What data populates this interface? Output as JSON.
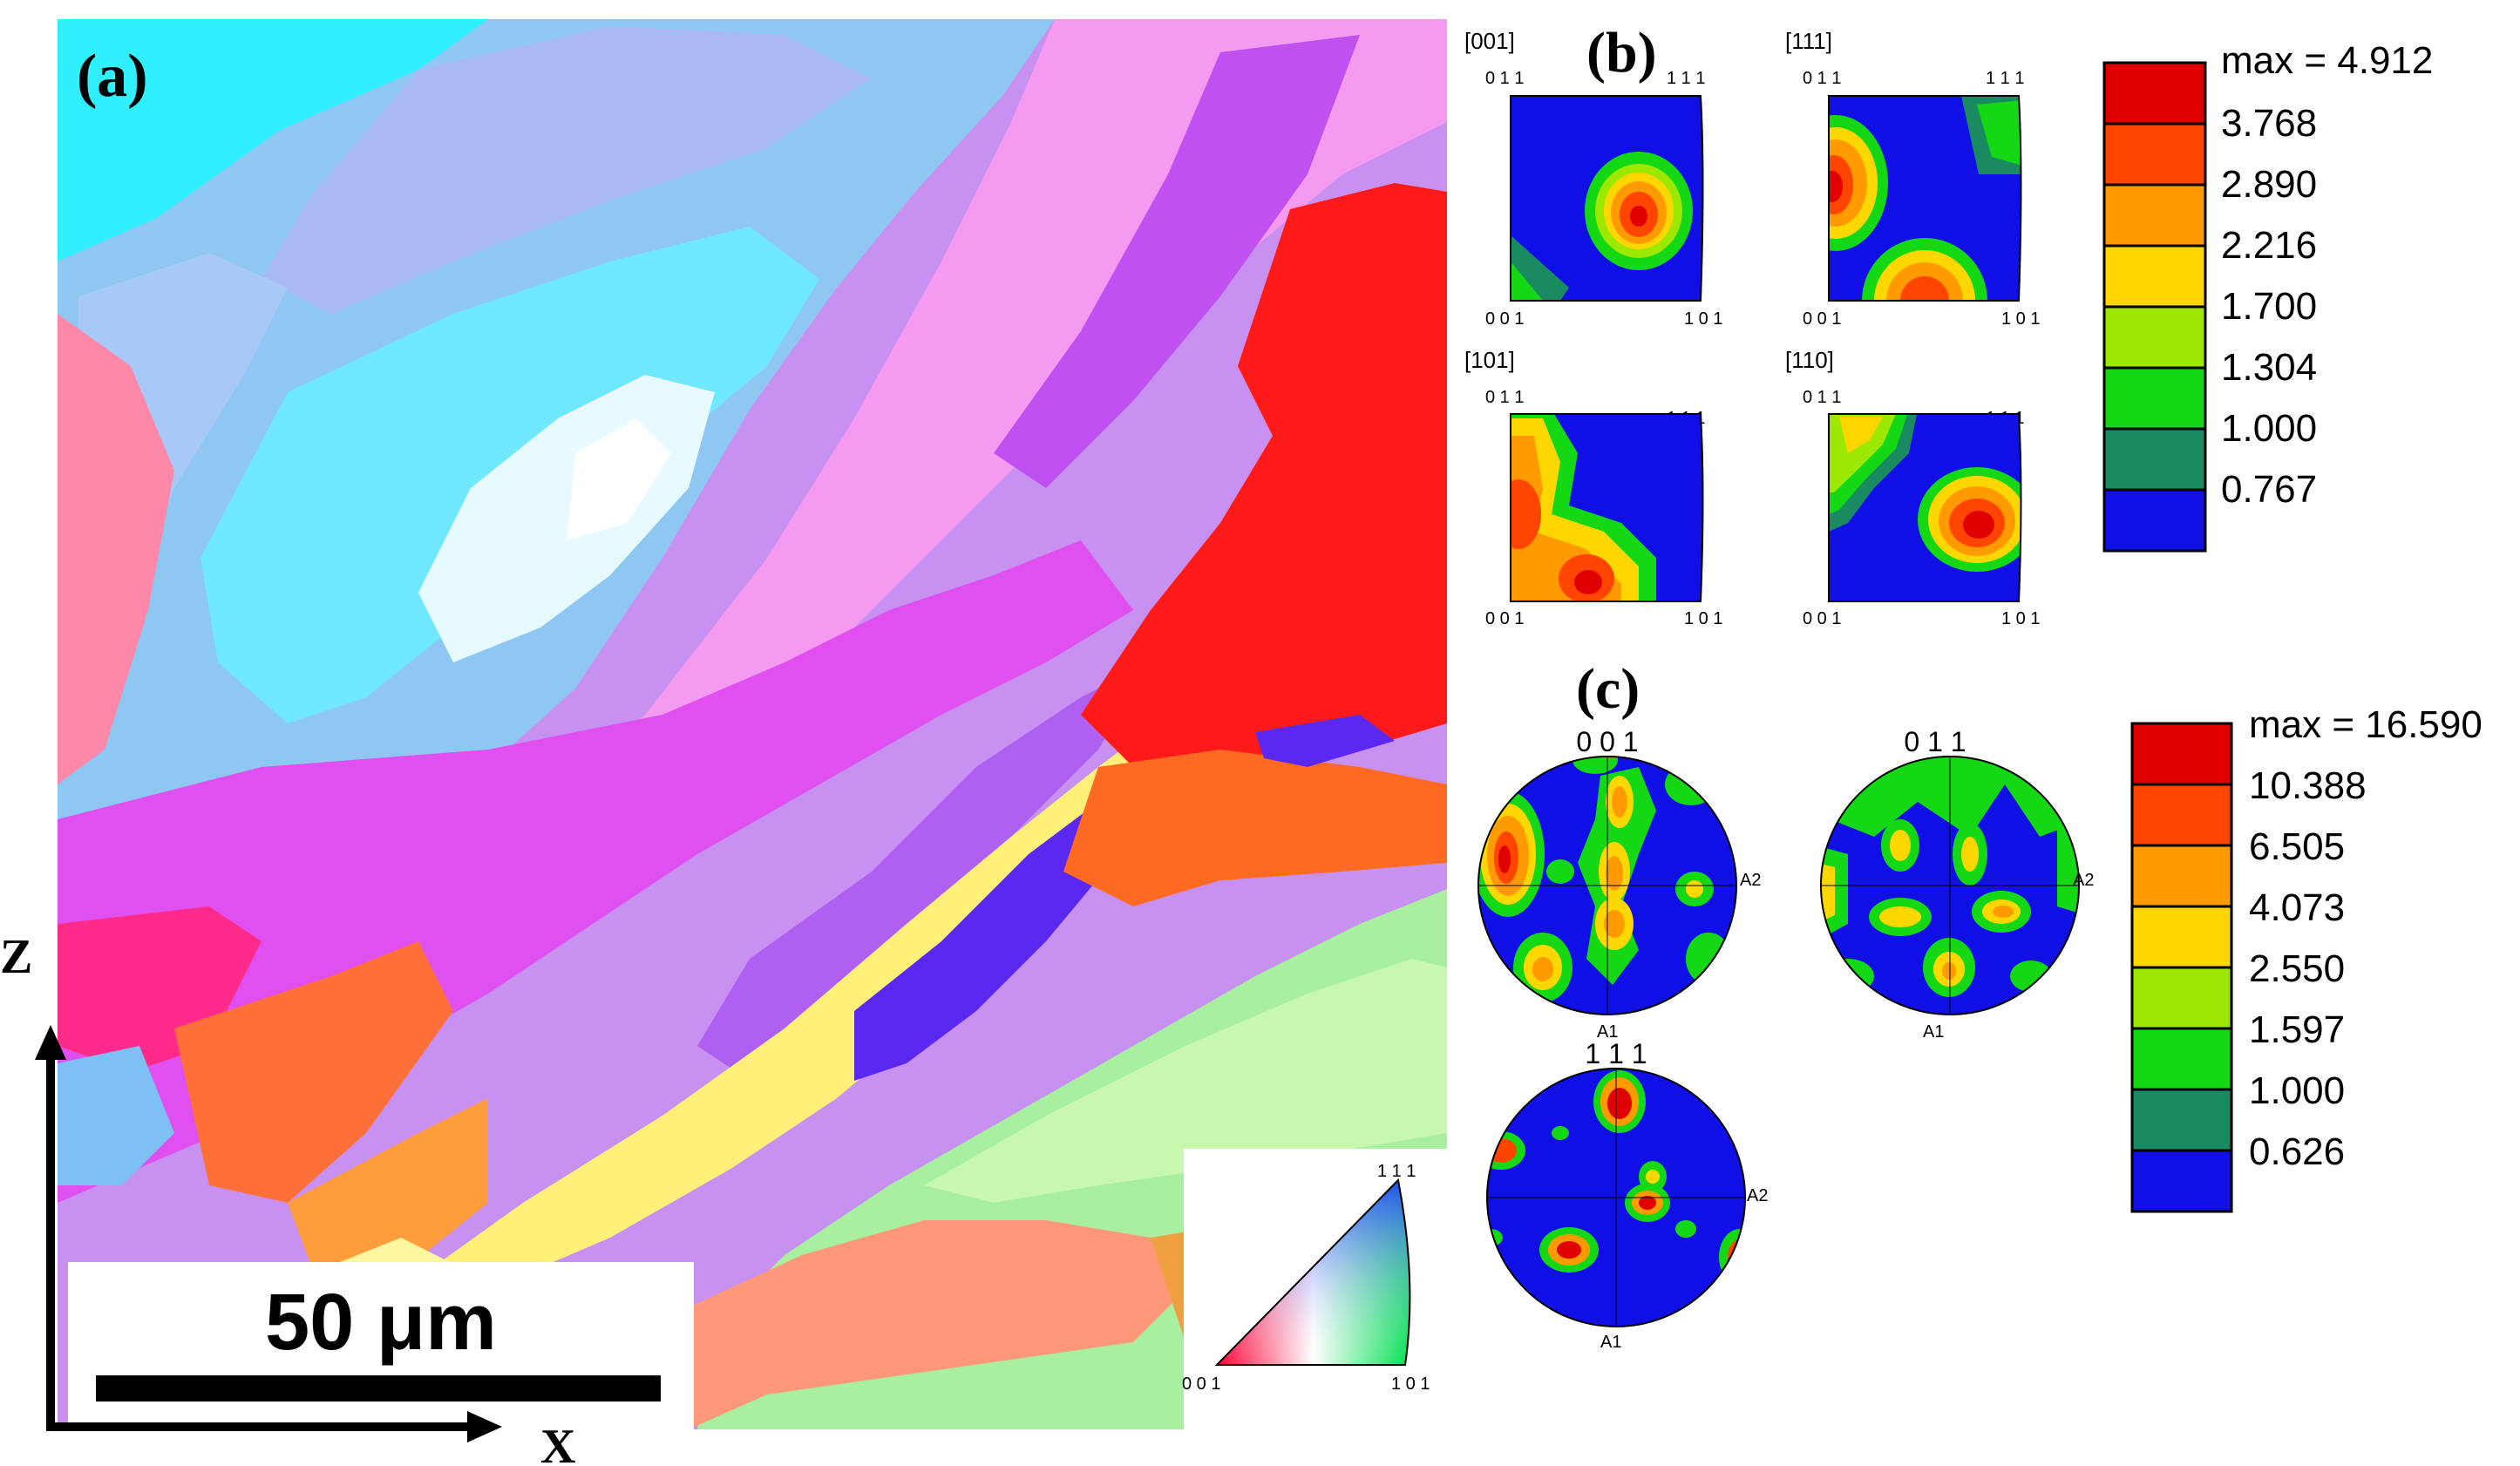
{
  "panel_a": {
    "label": "(a)",
    "scale_bar": "50 μm",
    "axis_z": "Z",
    "axis_x": "X",
    "ipf_key": {
      "top": "1 1 1",
      "left": "0 0 1",
      "right": "1 0 1"
    }
  },
  "panel_b": {
    "label": "(b)",
    "figures": [
      {
        "title": "[001]",
        "tl": "0 1 1",
        "tr": "1 1 1",
        "bl": "0 0 1",
        "br": "1 0 1"
      },
      {
        "title": "[111]",
        "tl": "0 1 1",
        "tr": "1 1 1",
        "bl": "0 0 1",
        "br": "1 0 1"
      },
      {
        "title": "[101]",
        "tl": "0 1 1",
        "tr": "1 1 1",
        "bl": "0 0 1",
        "br": "1 0 1"
      },
      {
        "title": "[110]",
        "tl": "0 1 1",
        "tr": "1 1 1",
        "bl": "0 0 1",
        "br": "1 0 1"
      }
    ],
    "legend": {
      "max": "max = 4.912",
      "levels": [
        "3.768",
        "2.890",
        "2.216",
        "1.700",
        "1.304",
        "1.000",
        "0.767"
      ]
    }
  },
  "panel_c": {
    "label": "(c)",
    "figures": [
      {
        "title": "0 0 1",
        "a1": "A1",
        "a2": "A2"
      },
      {
        "title": "0 1 1",
        "a1": "A1",
        "a2": "A2"
      },
      {
        "title": "1 1 1",
        "a1": "A1",
        "a2": "A2"
      }
    ],
    "legend": {
      "max": "max = 16.590",
      "levels": [
        "10.388",
        "6.505",
        "4.073",
        "2.550",
        "1.597",
        "1.000",
        "0.626"
      ]
    }
  },
  "colors": {
    "contour": [
      "#e00000",
      "#ff4500",
      "#ff9b00",
      "#ffd700",
      "#9ce800",
      "#14d814",
      "#1a8a60",
      "#1010e6"
    ]
  }
}
